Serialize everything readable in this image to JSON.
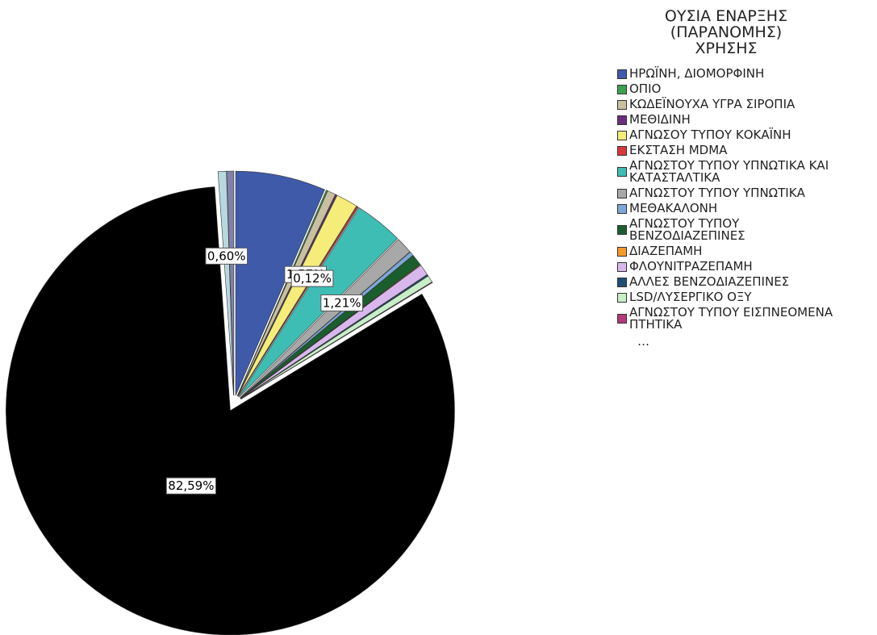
{
  "chart_data": {
    "type": "pie",
    "legend_title": "ΟΥΣΙΑ ΕΝΑΡΞΗΣ (ΠΑΡΑΝΟΜΗΣ) ΧΡΗΣΗΣ",
    "legend_more": "…",
    "categories": [
      "ΗΡΩΪΝΗ, ΔΙΟΜΟΡΦΙΝΗ",
      "ΟΠΙΟ",
      "ΚΩΔΕΪΝΟΥΧΑ ΥΓΡΑ ΣΙΡΟΠΙΑ",
      "ΜΕΘΙΔΙΝΗ",
      "ΑΓΝΩΣΟΥ ΤΥΠΟΥ ΚΟΚΑΪΝΗ",
      "ΕΚΣΤΑΣΗ MDMA",
      "ΑΓΝΩΣΤΟΥ ΤΥΠΟΥ ΥΠΝΩΤΙΚΑ ΚΑΙ ΚΑΤΑΣΤΑΛΤΙΚΑ",
      "ΑΓΝΩΣΤΟΥ ΤΥΠΟΥ ΥΠΝΩΤΙΚΑ",
      "ΜΕΘΑΚΑΛΟΝΗ",
      "ΑΓΝΩΣΤΟΥ ΤΥΠΟΥ ΒΕΝΖΟΔΙΑΖΕΠΙΝΕΣ",
      "ΔΙΑΖΕΠΑΜΗ",
      "ΦΛΟΥΝΙΤΡΑΖΕΠΑΜΗ",
      "ΑΛΛΕΣ ΒΕΝΖΟΔΙΑΖΕΠΙΝΕΣ",
      "LSD/ΛΥΣΕΡΓΙΚΟ ΟΞΥ",
      "ΑΓΝΩΣΤΟΥ ΤΥΠΟΥ ΕΙΣΠΝΕΟΜΕΝΑ ΠΤΗΤΙΚΑ",
      null,
      null,
      null
    ],
    "values": [
      6.5,
      0.1,
      0.6,
      0.1,
      1.57,
      0.12,
      3.5,
      1.21,
      0.3,
      0.8,
      0.05,
      0.8,
      0.1,
      0.5,
      0.05,
      82.59,
      0.6,
      0.51
    ],
    "value_labels": [
      null,
      null,
      null,
      null,
      "1,57%",
      "0,12%",
      null,
      "1,21%",
      null,
      null,
      null,
      null,
      null,
      null,
      null,
      "82,59%",
      "0,60%",
      null
    ],
    "colors": [
      "#3f5aa8",
      "#3ea04e",
      "#c8c0a0",
      "#6a2e7a",
      "#f5ec7a",
      "#d8383a",
      "#3ebdb5",
      "#a8a8a8",
      "#7ca8d8",
      "#1b5e2e",
      "#f39a2a",
      "#d8b8ec",
      "#1f4e74",
      "#c8eec8",
      "#b03a7a",
      "#000000",
      "#b8d8e0",
      "#8080a8"
    ]
  }
}
